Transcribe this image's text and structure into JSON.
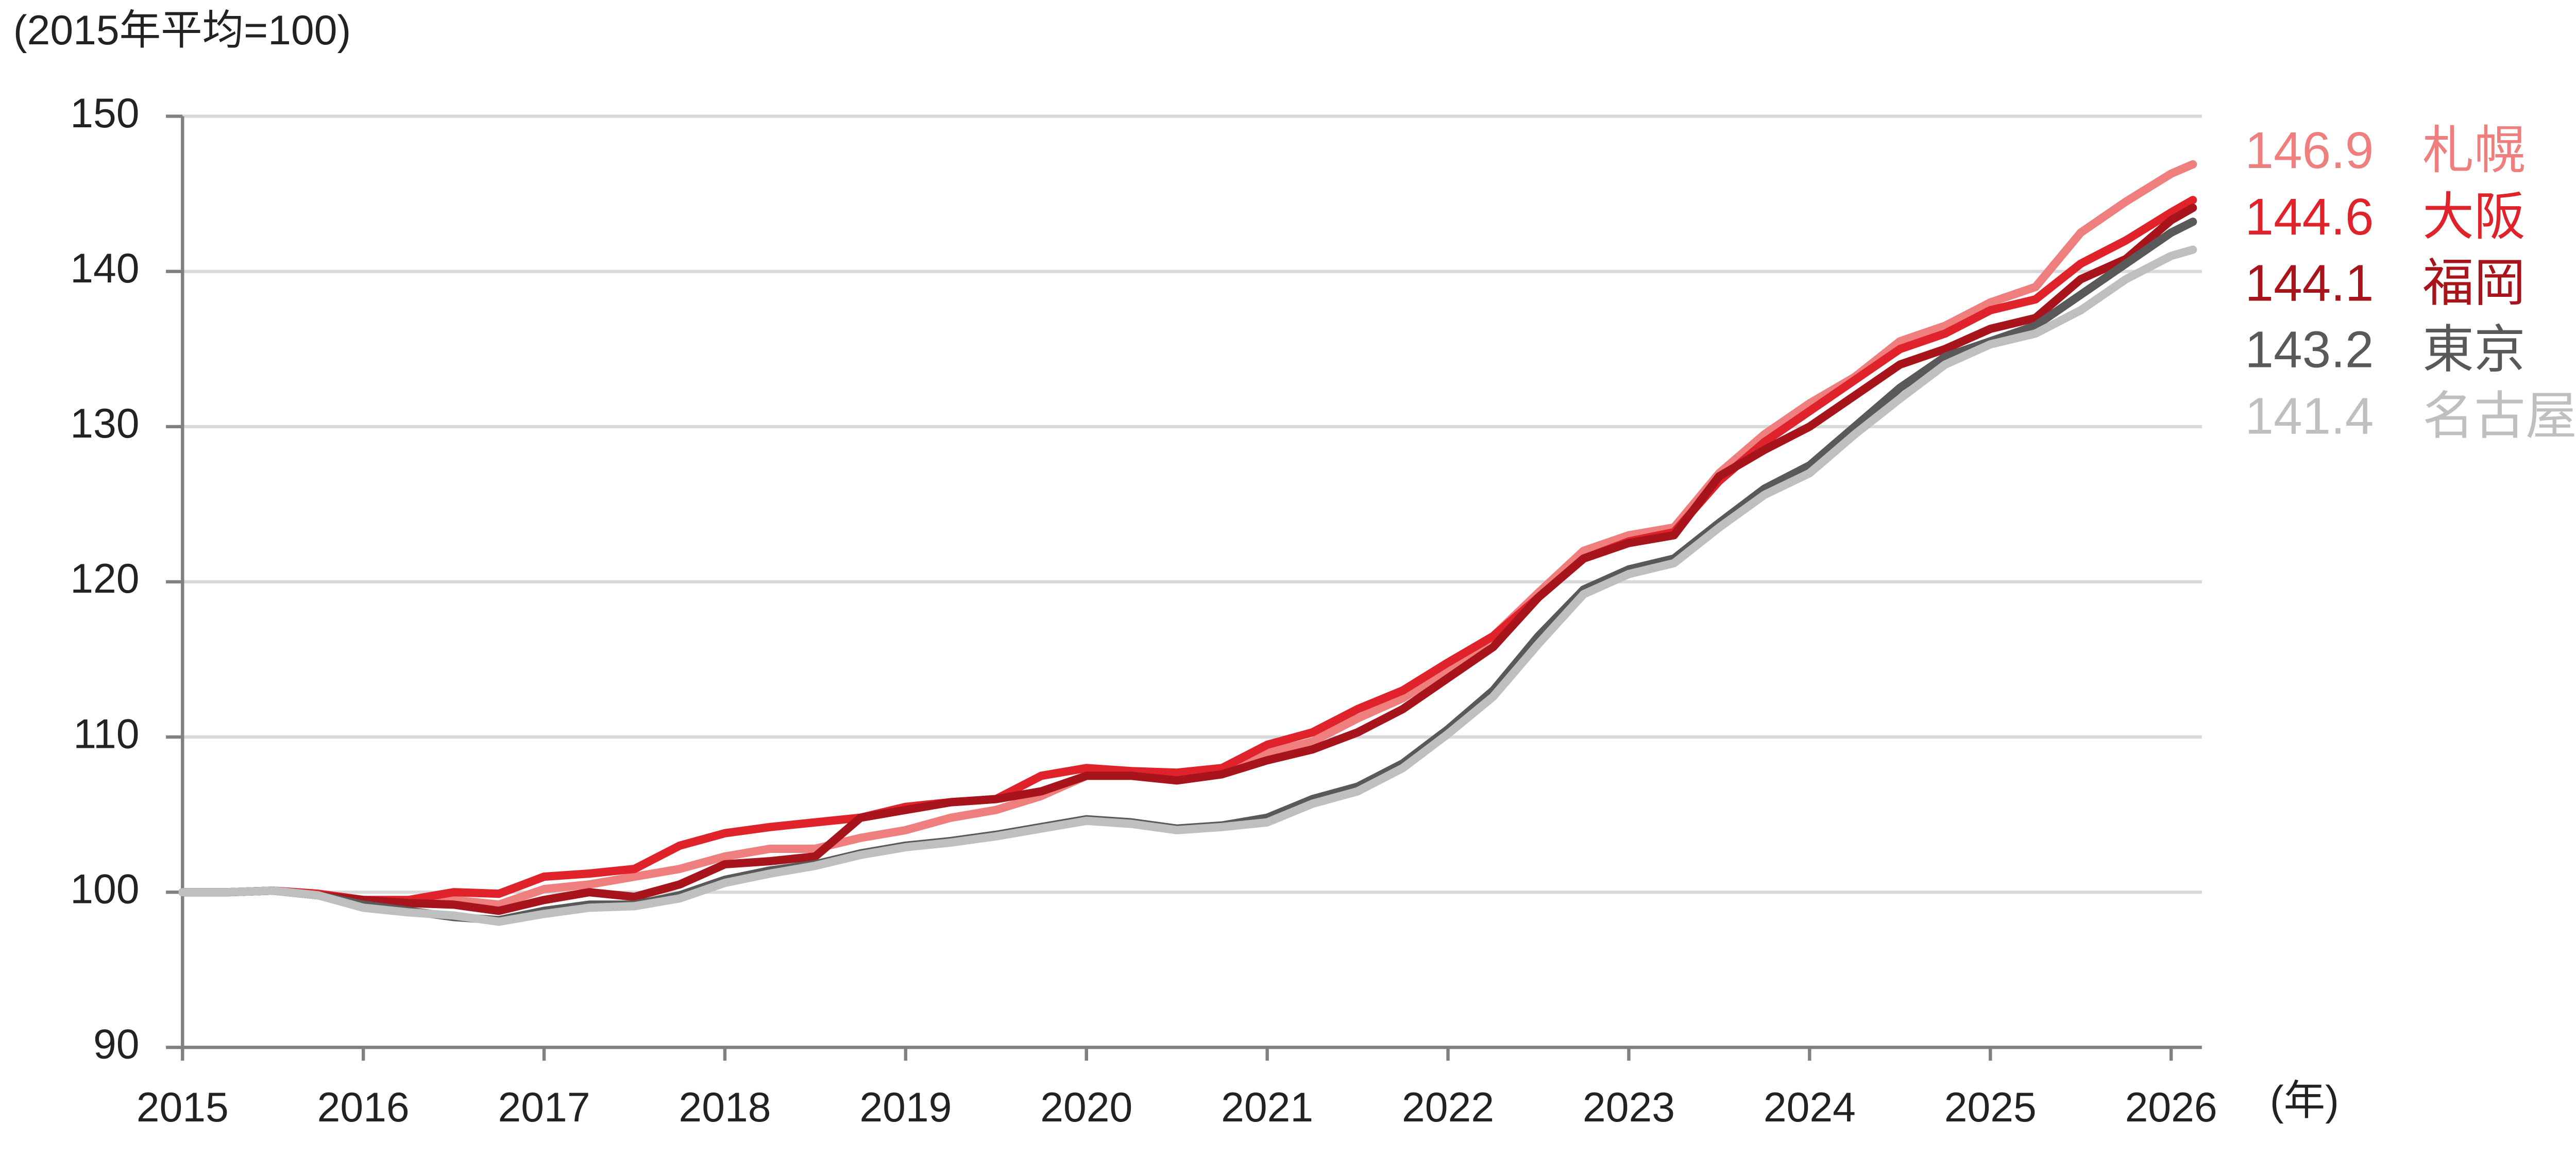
{
  "chart_data": {
    "type": "line",
    "ylabel": "(2015年平均=100)",
    "xlabel": "(年)",
    "x": [
      2015,
      2015.25,
      2015.5,
      2015.75,
      2016,
      2016.25,
      2016.5,
      2016.75,
      2017,
      2017.25,
      2017.5,
      2017.75,
      2018,
      2018.25,
      2018.5,
      2018.75,
      2019,
      2019.25,
      2019.5,
      2019.75,
      2020,
      2020.25,
      2020.5,
      2020.75,
      2021,
      2021.25,
      2021.5,
      2021.75,
      2022,
      2022.25,
      2022.5,
      2022.75,
      2023,
      2023.25,
      2023.5,
      2023.75,
      2024,
      2024.25,
      2024.5,
      2024.75,
      2025,
      2025.25,
      2025.5,
      2025.75,
      2026,
      2026.12
    ],
    "series": [
      {
        "name": "札幌",
        "color": "#ef7f7f",
        "values": [
          100,
          100,
          100.1,
          99.9,
          99.5,
          99.3,
          99.5,
          99.2,
          100.2,
          100.5,
          101,
          101.5,
          102.3,
          102.8,
          102.8,
          103.5,
          104,
          104.8,
          105.3,
          106.2,
          107.5,
          107.8,
          107.5,
          107.8,
          109,
          109.7,
          111.2,
          112.5,
          114.3,
          116.5,
          119.3,
          122,
          123,
          123.5,
          127,
          129.5,
          131.5,
          133.2,
          135.5,
          136.5,
          138,
          139,
          142.5,
          144.5,
          146.3,
          146.9
        ]
      },
      {
        "name": "大阪",
        "color": "#e0222a",
        "values": [
          100,
          100,
          100.1,
          99.9,
          99.5,
          99.5,
          100,
          99.9,
          101,
          101.2,
          101.5,
          103,
          103.8,
          104.2,
          104.5,
          104.8,
          105.5,
          105.8,
          106,
          107.5,
          108,
          107.8,
          107.7,
          108,
          109.5,
          110.3,
          111.8,
          113,
          114.8,
          116.5,
          119,
          121.5,
          122.6,
          123.2,
          126.5,
          129,
          131,
          133,
          135,
          136,
          137.5,
          138.2,
          140.5,
          142,
          143.8,
          144.6
        ]
      },
      {
        "name": "福岡",
        "color": "#a8141b",
        "values": [
          100,
          100,
          100.1,
          99.8,
          99.5,
          99.3,
          99.2,
          98.8,
          99.5,
          100,
          99.7,
          100.5,
          101.8,
          102,
          102.3,
          104.8,
          105.3,
          105.8,
          106,
          106.5,
          107.5,
          107.5,
          107.2,
          107.6,
          108.5,
          109.2,
          110.3,
          111.8,
          113.8,
          115.8,
          119,
          121.5,
          122.5,
          123,
          126.8,
          128.5,
          130,
          132,
          134,
          135,
          136.3,
          137,
          139.5,
          140.8,
          143.3,
          144.1
        ]
      },
      {
        "name": "東京",
        "color": "#595959",
        "values": [
          100,
          100,
          100.1,
          99.8,
          99.2,
          98.8,
          98.4,
          98.2,
          98.8,
          99.2,
          99.2,
          99.8,
          100.8,
          101.4,
          101.8,
          102.5,
          103,
          103.3,
          103.7,
          104.2,
          104.7,
          104.5,
          104.1,
          104.3,
          104.8,
          106,
          106.8,
          108.3,
          110.5,
          113,
          116.5,
          119.5,
          120.8,
          121.5,
          123.8,
          126,
          127.5,
          130,
          132.5,
          134.5,
          135.5,
          136.5,
          138.5,
          140.5,
          142.5,
          143.2
        ]
      },
      {
        "name": "名古屋",
        "color": "#bfbfbf",
        "values": [
          100,
          100,
          100.1,
          99.8,
          99,
          98.7,
          98.5,
          98.1,
          98.6,
          99,
          99.1,
          99.6,
          100.6,
          101.2,
          101.7,
          102.4,
          102.9,
          103.2,
          103.6,
          104.1,
          104.6,
          104.4,
          104,
          104.2,
          104.5,
          105.7,
          106.5,
          108,
          110.2,
          112.6,
          116,
          119.2,
          120.5,
          121.2,
          123.5,
          125.6,
          127,
          129.5,
          131.8,
          134,
          135.3,
          136,
          137.5,
          139.5,
          141,
          141.4
        ]
      }
    ],
    "xlim": [
      2015,
      2026.17
    ],
    "xticks": [
      2015,
      2016,
      2017,
      2018,
      2019,
      2020,
      2021,
      2022,
      2023,
      2024,
      2025,
      2026
    ],
    "ylim": [
      90,
      150
    ],
    "yticks": [
      90,
      100,
      110,
      120,
      130,
      140,
      150
    ],
    "grid": true
  }
}
